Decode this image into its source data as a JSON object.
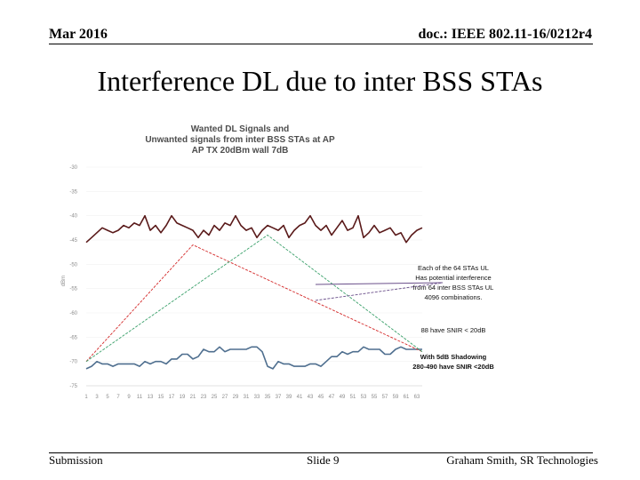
{
  "header": {
    "date": "Mar 2016",
    "doc": "doc.: IEEE 802.11-16/0212r4"
  },
  "title": "Interference DL due to inter BSS STAs",
  "footer": {
    "left": "Submission",
    "center": "Slide 9",
    "right": "Graham Smith, SR Technologies"
  },
  "chart_data": {
    "type": "line",
    "title_lines": [
      "Wanted DL Signals and",
      "Unwanted signals from inter BSS STAs at AP",
      "AP TX 20dBm wall 7dB"
    ],
    "ylabel": "dBm",
    "ylim": [
      -75,
      -30
    ],
    "yticks": [
      "-30",
      "-35",
      "-40",
      "-45",
      "-50",
      "-55",
      "-60",
      "-65",
      "-70",
      "-75"
    ],
    "xticks": [
      "1",
      "3",
      "5",
      "7",
      "9",
      "11",
      "13",
      "15",
      "17",
      "19",
      "21",
      "23",
      "25",
      "27",
      "29",
      "31",
      "33",
      "35",
      "37",
      "39",
      "41",
      "43",
      "45",
      "47",
      "49",
      "51",
      "53",
      "55",
      "57",
      "59",
      "61",
      "63"
    ],
    "series": [
      {
        "name": "",
        "color": "#5a1a1a",
        "values": [
          -45.5,
          -44.5,
          -43.5,
          -42.5,
          -43,
          -43.5,
          -43,
          -42,
          -42.5,
          -41.5,
          -42,
          -40,
          -43,
          -42,
          -43.5,
          -42,
          -40,
          -41.5,
          -42,
          -42.5,
          -43,
          -44.5,
          -43,
          -44,
          -42,
          -43,
          -41.5,
          -42,
          -40,
          -42,
          -43,
          -42.5,
          -44.5,
          -43,
          -42,
          -42.5,
          -43,
          -42,
          -44.5,
          -43,
          -42,
          -41.5,
          -40,
          -42,
          -43,
          -42,
          -44,
          -42.5,
          -41,
          -43,
          -42.5,
          -40,
          -44.5,
          -43.5,
          -42,
          -43.5,
          -43,
          -42.5,
          -44,
          -43.5,
          -45.5,
          -44,
          -43,
          -42.5
        ]
      },
      {
        "name": "",
        "color": "#4f6f8f",
        "values": [
          -71.5,
          -71,
          -70,
          -70.5,
          -70.5,
          -71,
          -70.5,
          -70.5,
          -70.5,
          -70.5,
          -71,
          -70,
          -70.5,
          -70,
          -70,
          -70.5,
          -69.5,
          -69.5,
          -68.5,
          -68.5,
          -69.5,
          -69,
          -67.5,
          -68,
          -68,
          -67,
          -68,
          -67.5,
          -67.5,
          -67.5,
          -67.5,
          -67,
          -67,
          -68,
          -71,
          -71.5,
          -70,
          -70.5,
          -70.5,
          -71,
          -71,
          -71,
          -70.5,
          -70.5,
          -71,
          -70,
          -69,
          -69,
          -68,
          -68.5,
          -68,
          -68,
          -67,
          -67.5,
          -67.5,
          -67.5,
          -68.5,
          -68.5,
          -67.5,
          -67,
          -67.5,
          -67.5,
          -67.5,
          -67.5
        ]
      },
      {
        "name": "",
        "color": "#d42a2a",
        "points": [
          [
            1,
            -70
          ],
          [
            21,
            -46
          ],
          [
            64,
            -68
          ]
        ]
      },
      {
        "name": "",
        "color": "#3aa06a",
        "points": [
          [
            1,
            -70
          ],
          [
            35,
            -44
          ],
          [
            64,
            -68
          ]
        ]
      }
    ],
    "annotations": [
      {
        "lines": [
          "Each of the 64 STAs UL",
          "Has potential interference",
          "from 64 inter BSS STAs UL",
          "4096 combinations."
        ]
      },
      {
        "lines": [
          "88 have SNIR < 20dB"
        ]
      },
      {
        "lines": [
          "With 5dB Shadowing",
          "280-490 have SNIR <20dB"
        ]
      }
    ]
  }
}
